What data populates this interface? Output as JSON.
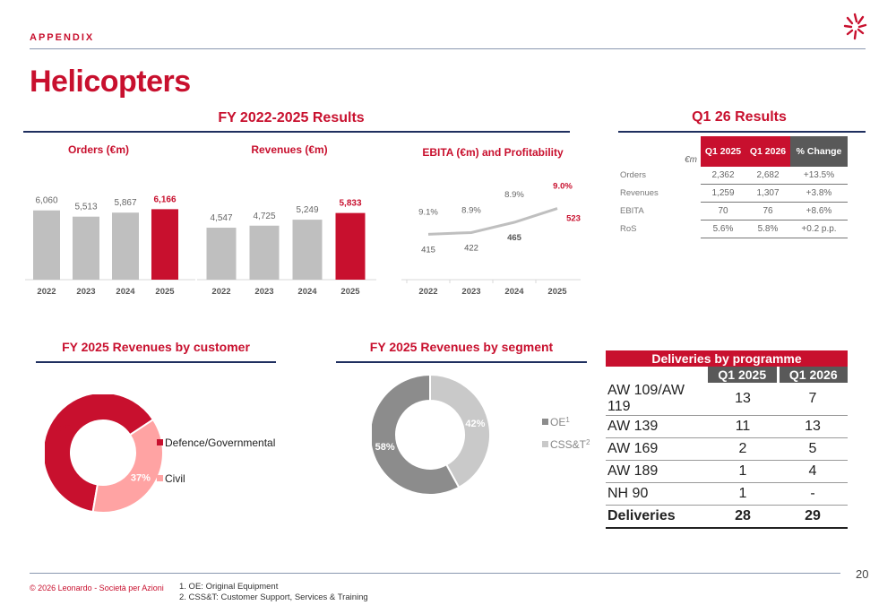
{
  "header": {
    "section": "APPENDIX",
    "title": "Helicopters"
  },
  "fy_section": {
    "title": "FY 2022-2025 Results"
  },
  "q1_section": {
    "title": "Q1 26 Results"
  },
  "colors": {
    "accent": "#c8102e",
    "gray_bar": "#bfbfbf",
    "navy": "#1f2f5f",
    "dark_gray": "#595959",
    "pink": "#ffa3a3",
    "segment_dark": "#8c8c8c",
    "segment_light": "#c9c9c9"
  },
  "chart_data": [
    {
      "type": "bar",
      "title": "Orders (€m)",
      "categories": [
        "2022",
        "2023",
        "2024",
        "2025"
      ],
      "values": [
        6060,
        5513,
        5867,
        6166
      ],
      "labels": [
        "6,060",
        "5,513",
        "5,867",
        "6,166"
      ],
      "highlight_index": 3,
      "ylim": [
        0,
        8000
      ]
    },
    {
      "type": "bar",
      "title": "Revenues (€m)",
      "categories": [
        "2022",
        "2023",
        "2024",
        "2025"
      ],
      "values": [
        4547,
        4725,
        5249,
        5833
      ],
      "labels": [
        "4,547",
        "4,725",
        "5,249",
        "5,833"
      ],
      "highlight_index": 3,
      "ylim": [
        0,
        8000
      ]
    },
    {
      "type": "line",
      "title": "EBITA (€m) and Profitability",
      "categories": [
        "2022",
        "2023",
        "2024",
        "2025"
      ],
      "values": [
        415,
        422,
        465,
        523
      ],
      "value_labels": [
        "415",
        "422",
        "465",
        "523"
      ],
      "profitability_labels": [
        "9.1%",
        "8.9%",
        "8.9%",
        "9.0%"
      ],
      "ylim": [
        300,
        600
      ]
    },
    {
      "type": "pie",
      "title": "FY 2025 Revenues by customer",
      "slices": [
        {
          "name": "Defence/Governmental",
          "value": 63,
          "label": "63%"
        },
        {
          "name": "Civil",
          "value": 37,
          "label": "37%"
        }
      ]
    },
    {
      "type": "pie",
      "title": "FY 2025 Revenues by segment",
      "slices": [
        {
          "name": "OE",
          "sup": "1",
          "value": 58,
          "label": "58%"
        },
        {
          "name": "CSS&T",
          "sup": "2",
          "value": 42,
          "label": "42%"
        }
      ]
    }
  ],
  "q1_table": {
    "unit": "€m",
    "headers": [
      "Q1 2025",
      "Q1 2026",
      "% Change"
    ],
    "rows": [
      {
        "label": "Orders",
        "v1": "2,362",
        "v2": "2,682",
        "chg": "+13.5%"
      },
      {
        "label": "Revenues",
        "v1": "1,259",
        "v2": "1,307",
        "chg": "+3.8%"
      },
      {
        "label": "EBITA",
        "v1": "70",
        "v2": "76",
        "chg": "+8.6%"
      },
      {
        "label": "RoS",
        "v1": "5.6%",
        "v2": "5.8%",
        "chg": "+0.2 p.p."
      }
    ]
  },
  "deliveries": {
    "title": "Deliveries by programme",
    "headers": [
      "Q1 2025",
      "Q1 2026"
    ],
    "rows": [
      {
        "label": "AW 109/AW 119",
        "v1": "13",
        "v2": "7"
      },
      {
        "label": "AW 139",
        "v1": "11",
        "v2": "13"
      },
      {
        "label": "AW 169",
        "v1": "2",
        "v2": "5"
      },
      {
        "label": "AW 189",
        "v1": "1",
        "v2": "4"
      },
      {
        "label": "NH 90",
        "v1": "1",
        "v2": "-"
      }
    ],
    "total": {
      "label": "Deliveries",
      "v1": "28",
      "v2": "29"
    }
  },
  "footer": {
    "copyright": "© 2026 Leonardo - Società per Azioni",
    "note1": "1. OE: Original Equipment",
    "note2": "2. CSS&T: Customer Support, Services & Training",
    "page": "20"
  }
}
